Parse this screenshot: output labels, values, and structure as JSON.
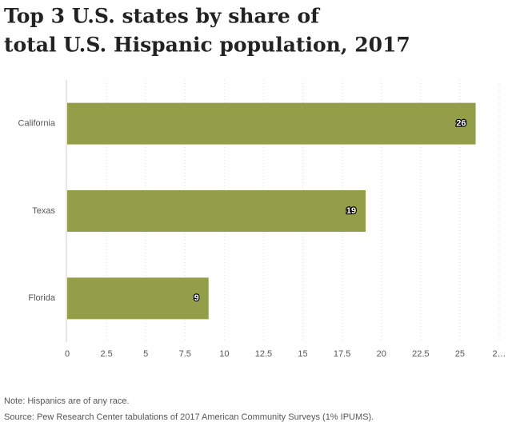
{
  "chart_data": {
    "type": "bar",
    "orientation": "horizontal",
    "title": "Top 3 U.S. states by share of total U.S. Hispanic population, 2017",
    "categories": [
      "California",
      "Texas",
      "Florida"
    ],
    "values": [
      26,
      19,
      9
    ],
    "color": "#949d48",
    "xlim": [
      0,
      27.5
    ],
    "xticks": [
      0,
      2.5,
      5,
      7.5,
      10,
      12.5,
      15,
      17.5,
      20,
      22.5,
      25,
      {
        "value": 27.5,
        "label": "2…"
      }
    ],
    "grid": true,
    "notes": [
      "Note: Hispanics are of any race.",
      "Source: Pew Research Center tabulations of 2017 American Community Surveys (1% IPUMS)."
    ]
  }
}
